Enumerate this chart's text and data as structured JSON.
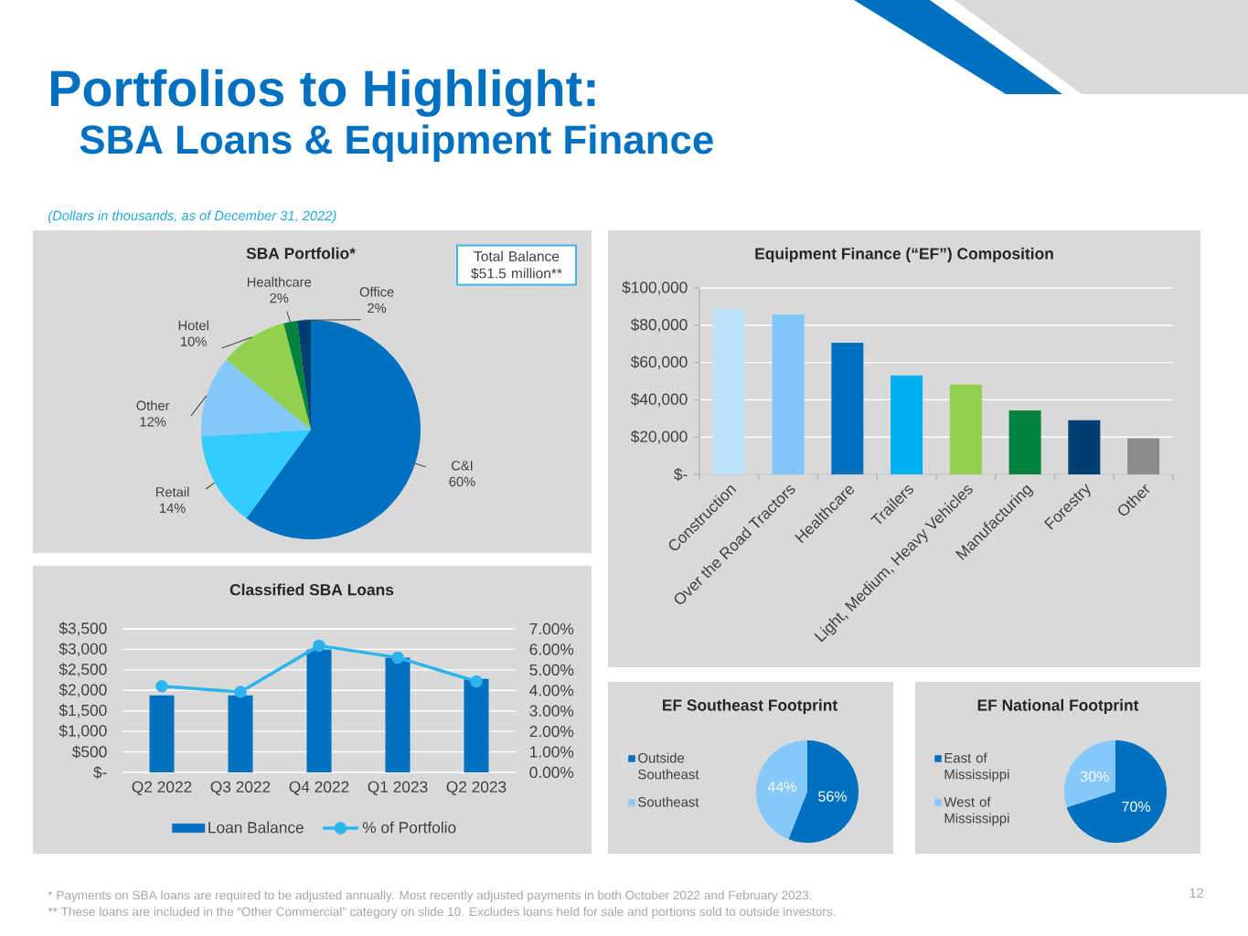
{
  "chart_data": [
    {
      "type": "other",
      "title": "Portfolios to Highlight:",
      "subtitle": "SBA Loans & Equipment Finance",
      "annotations": [
        "(Dollars in thousands, as of December 31, 2022)",
        "* Payments on SBA loans are required to be adjusted annually. Most recently adjusted payments in both October 2022 and February 2023.",
        "** These loans are included in the “Other Commercial” category on slide 10. Excludes loans held for sale and portions sold to outside investors.",
        "12"
      ]
    },
    {
      "type": "pie",
      "title": "SBA Portfolio*",
      "categories": [
        "C&I",
        "Retail",
        "Other",
        "Hotel",
        "Healthcare",
        "Office"
      ],
      "values": [
        60,
        14,
        12,
        10,
        2,
        2
      ],
      "colors": [
        "#0070C0",
        "#33CCFF",
        "#85C8FB",
        "#92D050",
        "#00843D",
        "#003F72"
      ],
      "value_labels": [
        "60%",
        "14%",
        "12%",
        "10%",
        "2%",
        "2%"
      ],
      "annotations": [
        "Total Balance $51.5 million**"
      ]
    },
    {
      "type": "bar",
      "title": "Equipment Finance (“EF”) Composition",
      "categories": [
        "Construction",
        "Over the Road Tractors",
        "Healthcare",
        "Trailers",
        "Light, Medium, Heavy Vehicles",
        "Manufacturing",
        "Forestry",
        "Other"
      ],
      "values": [
        88800,
        85700,
        70600,
        53100,
        48200,
        34300,
        29000,
        19400
      ],
      "colors": [
        "#BDE3FB",
        "#80C6FA",
        "#0070C0",
        "#00B0F0",
        "#92D050",
        "#00843D",
        "#003F72",
        "#8C8C8C"
      ],
      "ylim": [
        0,
        100000
      ],
      "yticks": [
        {
          "value": 0,
          "label": "$-"
        },
        {
          "value": 20000,
          "label": "$20,000"
        },
        {
          "value": 40000,
          "label": "$40,000"
        },
        {
          "value": 60000,
          "label": "$60,000"
        },
        {
          "value": 80000,
          "label": "$80,000"
        },
        {
          "value": 100000,
          "label": "$100,000"
        }
      ],
      "grid": "y"
    },
    {
      "type": "bar",
      "title": "Classified SBA Loans",
      "categories": [
        "Q2 2022",
        "Q3 2022",
        "Q4 2022",
        "Q1 2023",
        "Q2 2023"
      ],
      "series": [
        {
          "name": "Loan Balance",
          "type": "bar",
          "color": "#0070C0",
          "values": [
            1880,
            1880,
            3000,
            2800,
            2280
          ]
        },
        {
          "name": "% of Portfolio",
          "type": "line",
          "axis": "y2",
          "color": "#2DB4EC",
          "marker": "circle",
          "values": [
            4.2,
            3.92,
            6.18,
            5.6,
            4.44
          ]
        }
      ],
      "ylim": [
        0,
        3500
      ],
      "yticks": [
        {
          "value": 0,
          "label": "$-"
        },
        {
          "value": 500,
          "label": "$500"
        },
        {
          "value": 1000,
          "label": "$1,000"
        },
        {
          "value": 1500,
          "label": "$1,500"
        },
        {
          "value": 2000,
          "label": "$2,000"
        },
        {
          "value": 2500,
          "label": "$2,500"
        },
        {
          "value": 3000,
          "label": "$3,000"
        },
        {
          "value": 3500,
          "label": "$3,500"
        }
      ],
      "y2lim": [
        0,
        7
      ],
      "y2ticks": [
        {
          "value": 0,
          "label": "0.00%"
        },
        {
          "value": 1,
          "label": "1.00%"
        },
        {
          "value": 2,
          "label": "2.00%"
        },
        {
          "value": 3,
          "label": "3.00%"
        },
        {
          "value": 4,
          "label": "4.00%"
        },
        {
          "value": 5,
          "label": "5.00%"
        },
        {
          "value": 6,
          "label": "6.00%"
        },
        {
          "value": 7,
          "label": "7.00%"
        }
      ],
      "grid": "y",
      "legend": "bottom"
    },
    {
      "type": "pie",
      "title": "EF Southeast Footprint",
      "categories": [
        "Outside Southeast",
        "Southeast"
      ],
      "values": [
        56,
        44
      ],
      "colors": [
        "#0070C0",
        "#85C8FB"
      ],
      "value_labels": [
        "56%",
        "44%"
      ],
      "legend": "left"
    },
    {
      "type": "pie",
      "title": "EF National Footprint",
      "categories": [
        "East of Mississippi",
        "West of Mississippi"
      ],
      "values": [
        70,
        30
      ],
      "colors": [
        "#0070C0",
        "#85C8FB"
      ],
      "value_labels": [
        "70%",
        "30%"
      ],
      "legend": "left"
    }
  ]
}
